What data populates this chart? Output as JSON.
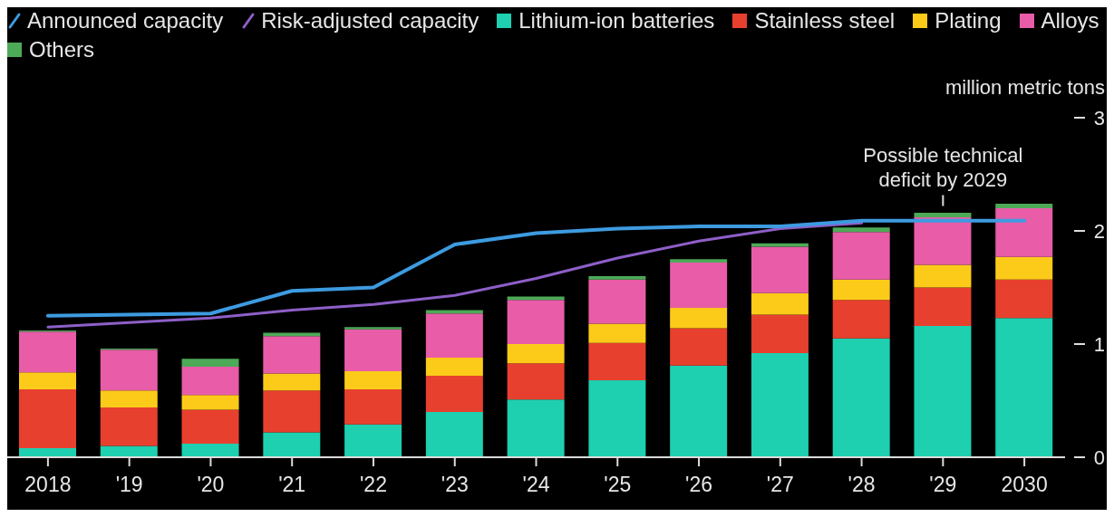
{
  "chart_data": {
    "type": "bar",
    "stacked": true,
    "ylabel": "million metric tons",
    "legend": "top left",
    "grid": false,
    "categories": [
      "2018",
      "'19",
      "'20",
      "'21",
      "'22",
      "'23",
      "'24",
      "'25",
      "'26",
      "'27",
      "'28",
      "'29",
      "2030"
    ],
    "ylim": [
      0,
      3
    ],
    "yticks": [
      0,
      1,
      2,
      3
    ],
    "series": [
      {
        "name": "Announced capacity",
        "type": "line",
        "color": "#3d9be0",
        "values": [
          1.25,
          1.26,
          1.27,
          1.47,
          1.5,
          1.88,
          1.98,
          2.02,
          2.04,
          2.04,
          2.09,
          2.09,
          2.09
        ]
      },
      {
        "name": "Risk-adjusted capacity",
        "type": "line",
        "color": "#8e5fc8",
        "values": [
          1.15,
          1.19,
          1.23,
          1.3,
          1.35,
          1.43,
          1.58,
          1.76,
          1.91,
          2.02,
          2.07,
          null,
          null
        ]
      },
      {
        "name": "Lithium-ion batteries",
        "color": "#1ecfb0",
        "values": [
          0.08,
          0.1,
          0.12,
          0.22,
          0.29,
          0.4,
          0.51,
          0.68,
          0.81,
          0.92,
          1.05,
          1.16,
          1.23
        ]
      },
      {
        "name": "Stainless steel",
        "color": "#e8402e",
        "values": [
          0.52,
          0.34,
          0.3,
          0.37,
          0.31,
          0.32,
          0.32,
          0.33,
          0.33,
          0.34,
          0.34,
          0.34,
          0.34
        ]
      },
      {
        "name": "Plating",
        "color": "#fccb1a",
        "values": [
          0.15,
          0.15,
          0.13,
          0.15,
          0.16,
          0.16,
          0.17,
          0.17,
          0.18,
          0.19,
          0.18,
          0.2,
          0.2
        ]
      },
      {
        "name": "Alloys",
        "color": "#e85ca8",
        "values": [
          0.36,
          0.36,
          0.25,
          0.33,
          0.37,
          0.39,
          0.39,
          0.39,
          0.4,
          0.41,
          0.42,
          0.42,
          0.43
        ]
      },
      {
        "name": "Others",
        "color": "#4daa57",
        "values": [
          0.01,
          0.01,
          0.07,
          0.03,
          0.02,
          0.03,
          0.03,
          0.03,
          0.03,
          0.03,
          0.04,
          0.04,
          0.04
        ]
      }
    ],
    "annotations": [
      "Possible technical\ndeficit by 2029"
    ]
  }
}
